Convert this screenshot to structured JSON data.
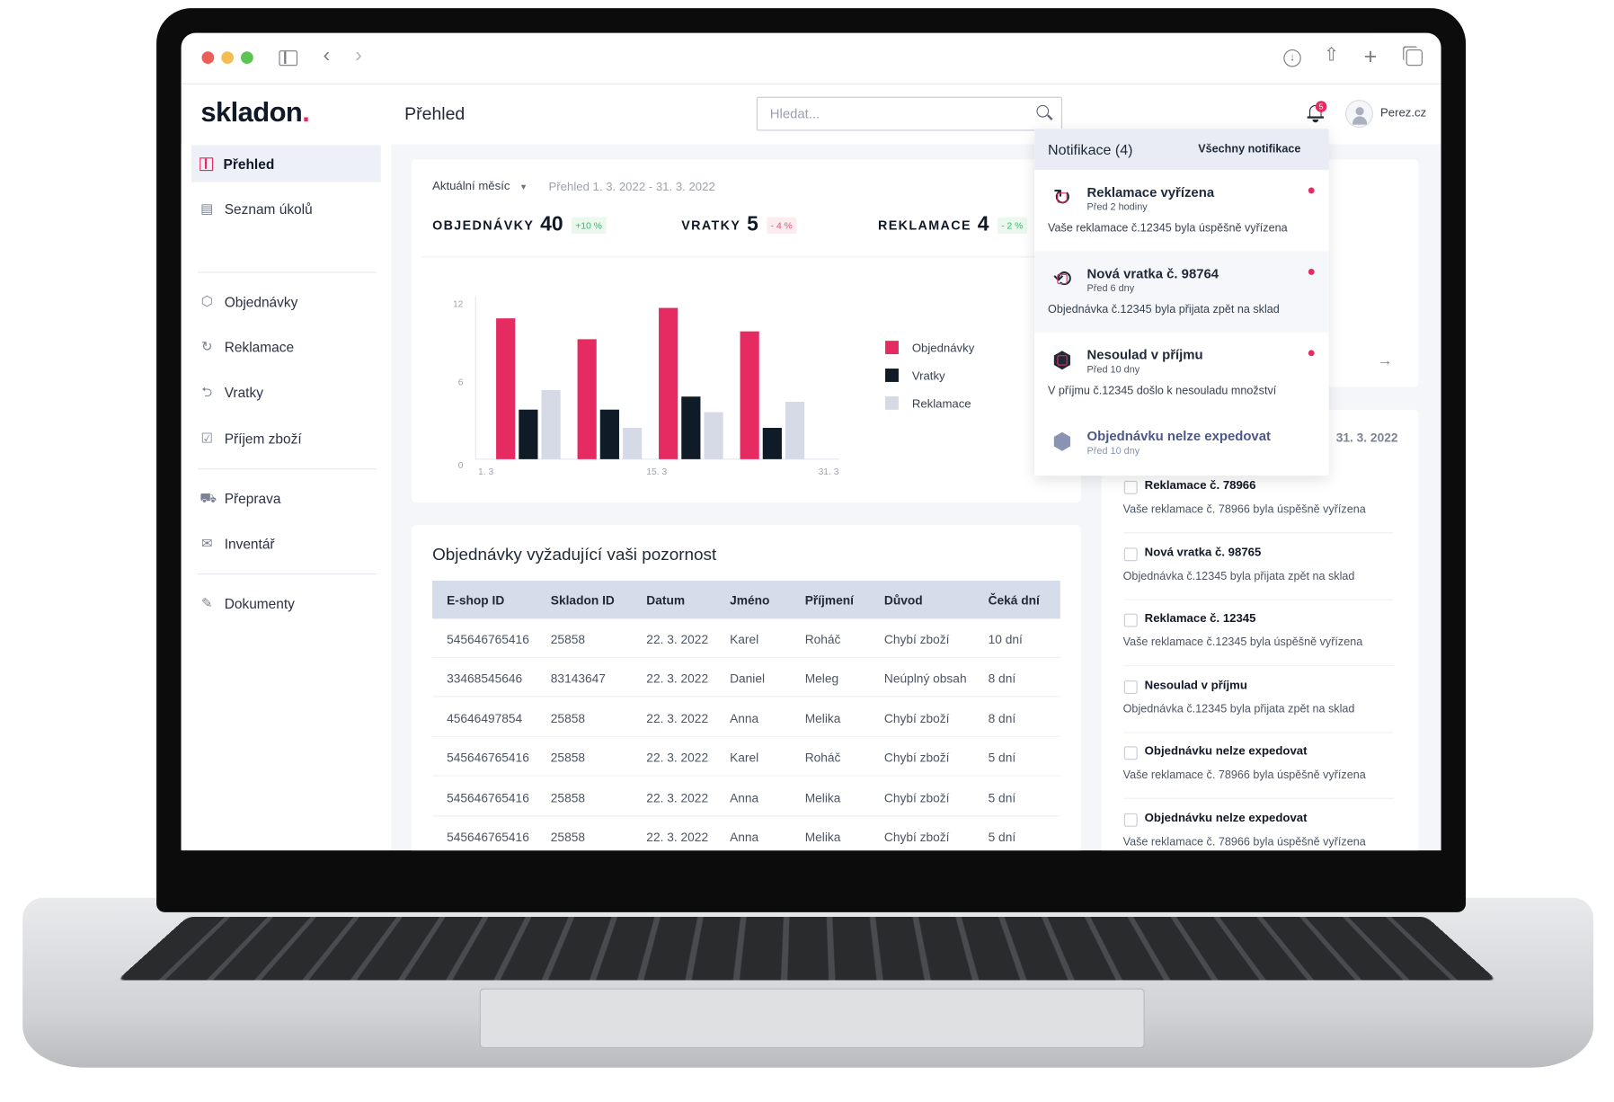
{
  "browser": {
    "icons": [
      "sidebar-toggle-icon",
      "back-icon",
      "forward-icon",
      "download-icon",
      "share-icon",
      "new-tab-icon",
      "tabs-icon"
    ]
  },
  "app": {
    "logo": "skladon",
    "page_title": "Přehled",
    "search_placeholder": "Hledat...",
    "notification_count": "5",
    "user": "Perez.cz",
    "accent": "#e52b61"
  },
  "sidebar": {
    "items": [
      {
        "label": "Přehled",
        "icon": "dashboard-icon",
        "active": true
      },
      {
        "label": "Seznam úkolů",
        "icon": "clipboard-icon"
      },
      {
        "label": "Objednávky",
        "icon": "box-icon"
      },
      {
        "label": "Reklamace",
        "icon": "rotate-box-icon"
      },
      {
        "label": "Vratky",
        "icon": "return-icon"
      },
      {
        "label": "Příjem zboží",
        "icon": "inbox-check-icon"
      },
      {
        "label": "Přeprava",
        "icon": "truck-icon"
      },
      {
        "label": "Inventář",
        "icon": "inventory-icon"
      },
      {
        "label": "Dokumenty",
        "icon": "document-edit-icon"
      }
    ]
  },
  "overview": {
    "period_select": "Aktuální měsíc",
    "period_text": "Přehled 1. 3. 2022 - 31. 3. 2022",
    "kpis": [
      {
        "label": "OBJEDNÁVKY",
        "value": "40",
        "change": "+10 %",
        "trend": "positive"
      },
      {
        "label": "VRATKY",
        "value": "5",
        "change": "- 4 %",
        "trend": "negative"
      },
      {
        "label": "REKLAMACE",
        "value": "4",
        "change": "- 2 %",
        "trend": "positive"
      }
    ]
  },
  "chart_data": {
    "type": "bar",
    "categories": [
      "1",
      "2",
      "3",
      "4"
    ],
    "x_tick_labels": [
      "1. 3",
      "15. 3",
      "31. 3"
    ],
    "y_ticks": [
      "0",
      "6",
      "12"
    ],
    "ylim": [
      0,
      12
    ],
    "grid": false,
    "legend_position": "right",
    "series": [
      {
        "name": "Objednávky",
        "color": "#e52b61",
        "values": [
          10.8,
          9.2,
          11.6,
          9.8
        ]
      },
      {
        "name": "Vratky",
        "color": "#0f1b26",
        "values": [
          3.8,
          3.8,
          4.8,
          2.4
        ]
      },
      {
        "name": "Reklamace",
        "color": "#d5dae6",
        "values": [
          5.3,
          2.4,
          3.6,
          4.4
        ]
      }
    ]
  },
  "orders": {
    "title": "Objednávky vyžadující vaši pozornost",
    "columns": [
      "E-shop ID",
      "Skladon ID",
      "Datum",
      "Jméno",
      "Příjmení",
      "Důvod",
      "Čeká dní"
    ],
    "rows": [
      [
        "545646765416",
        "25858",
        "22. 3. 2022",
        "Karel",
        "Roháč",
        "Chybí zboží",
        "10 dní"
      ],
      [
        "33468545646",
        "83143647",
        "22. 3. 2022",
        "Daniel",
        "Meleg",
        "Neúplný obsah",
        "8 dní"
      ],
      [
        "45646497854",
        "25858",
        "22. 3. 2022",
        "Anna",
        "Melika",
        "Chybí zboží",
        "8 dní"
      ],
      [
        "545646765416",
        "25858",
        "22. 3. 2022",
        "Karel",
        "Roháč",
        "Chybí zboží",
        "5 dní"
      ],
      [
        "545646765416",
        "25858",
        "22. 3. 2022",
        "Anna",
        "Melika",
        "Chybí zboží",
        "5 dní"
      ],
      [
        "545646765416",
        "25858",
        "22. 3. 2022",
        "Anna",
        "Melika",
        "Chybí zboží",
        "5 dní"
      ]
    ]
  },
  "notifications": {
    "title": "Notifikace (4)",
    "all_link": "Všechny notifikace",
    "items": [
      {
        "title": "Reklamace vyřízena",
        "time": "Před 2 hodiny",
        "desc": "Vaše reklamace č.12345 byla úspěšně vyřízena",
        "unread": true,
        "icon": "rotate-box-icon"
      },
      {
        "title": "Nová vratka č. 98764",
        "time": "Před 6 dny",
        "desc": "Objednávka č.12345 byla přijata zpět na sklad",
        "unread": true,
        "icon": "return-box-icon"
      },
      {
        "title": "Nesoulad v příjmu",
        "time": "Před 10 dny",
        "desc": "V příjmu č.12345 došlo k nesouladu množství",
        "unread": true,
        "icon": "box-icon"
      },
      {
        "title": "Objednávku nelze expedovat",
        "time": "Před 10 dny",
        "unread": false,
        "icon": "box-icon"
      }
    ]
  },
  "tasks": {
    "date": "31. 3. 2022",
    "items": [
      {
        "title": "Reklamace  č. 78966",
        "desc": "Vaše reklamace č. 78966 byla úspěšně vyřízena"
      },
      {
        "title": "Nová vratka č. 98765",
        "desc": "Objednávka č.12345 byla přijata zpět na sklad"
      },
      {
        "title": "Reklamace  č. 12345",
        "desc": "Vaše reklamace č.12345 byla úspěšně vyřízena"
      },
      {
        "title": "Nesoulad v příjmu",
        "desc": "Objednávka č.12345 byla přijata zpět na sklad"
      },
      {
        "title": "Objednávku nelze expedovat",
        "desc": "Vaše reklamace č. 78966 byla úspěšně vyřízena"
      },
      {
        "title": "Objednávku nelze expedovat",
        "desc": "Vaše reklamace č. 78966 byla úspěšně vyřízena"
      }
    ]
  }
}
